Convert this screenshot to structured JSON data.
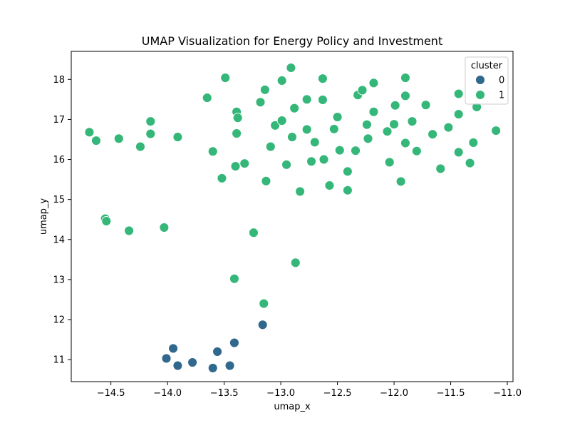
{
  "chart_data": {
    "type": "scatter",
    "title": "UMAP Visualization for Energy Policy and Investment",
    "xlabel": "umap_x",
    "ylabel": "umap_y",
    "xlim": [
      -14.85,
      -10.95
    ],
    "ylim": [
      10.45,
      18.7
    ],
    "xticks": [
      -14.5,
      -14.0,
      -13.5,
      -13.0,
      -12.5,
      -12.0,
      -11.5,
      -11.0
    ],
    "xtick_labels": [
      "−14.5",
      "−14.0",
      "−13.5",
      "−13.0",
      "−12.5",
      "−12.0",
      "−11.5",
      "−11.0"
    ],
    "yticks": [
      11,
      12,
      13,
      14,
      15,
      16,
      17,
      18
    ],
    "ytick_labels": [
      "11",
      "12",
      "13",
      "14",
      "15",
      "16",
      "17",
      "18"
    ],
    "grid": false,
    "legend": {
      "title": "cluster",
      "placement": "top-right"
    },
    "series": [
      {
        "name": "0",
        "color": "#31688e",
        "points": [
          [
            -14.01,
            11.03
          ],
          [
            -13.95,
            11.28
          ],
          [
            -13.91,
            10.85
          ],
          [
            -13.78,
            10.93
          ],
          [
            -13.6,
            10.79
          ],
          [
            -13.56,
            11.2
          ],
          [
            -13.45,
            10.85
          ],
          [
            -13.41,
            11.42
          ],
          [
            -13.16,
            11.87
          ]
        ]
      },
      {
        "name": "1",
        "color": "#35b779",
        "points": [
          [
            -14.69,
            16.68
          ],
          [
            -14.63,
            16.47
          ],
          [
            -14.43,
            16.52
          ],
          [
            -14.24,
            16.32
          ],
          [
            -14.15,
            16.95
          ],
          [
            -14.15,
            16.64
          ],
          [
            -13.91,
            16.56
          ],
          [
            -13.65,
            17.54
          ],
          [
            -13.6,
            16.2
          ],
          [
            -13.52,
            15.53
          ],
          [
            -13.49,
            18.04
          ],
          [
            -13.39,
            17.19
          ],
          [
            -13.38,
            17.04
          ],
          [
            -13.39,
            16.65
          ],
          [
            -13.4,
            15.83
          ],
          [
            -13.32,
            15.9
          ],
          [
            -13.18,
            17.43
          ],
          [
            -13.14,
            17.74
          ],
          [
            -13.13,
            15.46
          ],
          [
            -13.09,
            16.32
          ],
          [
            -13.05,
            16.85
          ],
          [
            -12.99,
            17.97
          ],
          [
            -12.99,
            16.97
          ],
          [
            -12.95,
            15.87
          ],
          [
            -12.91,
            18.29
          ],
          [
            -12.9,
            16.56
          ],
          [
            -12.88,
            17.28
          ],
          [
            -12.83,
            15.2
          ],
          [
            -12.77,
            17.5
          ],
          [
            -12.77,
            16.75
          ],
          [
            -12.73,
            15.95
          ],
          [
            -12.7,
            16.43
          ],
          [
            -12.63,
            18.02
          ],
          [
            -12.63,
            17.49
          ],
          [
            -12.62,
            16.0
          ],
          [
            -12.57,
            15.35
          ],
          [
            -12.53,
            16.76
          ],
          [
            -12.5,
            17.06
          ],
          [
            -12.48,
            16.23
          ],
          [
            -12.41,
            15.7
          ],
          [
            -12.41,
            15.23
          ],
          [
            -12.34,
            16.22
          ],
          [
            -12.32,
            17.61
          ],
          [
            -12.28,
            17.73
          ],
          [
            -12.24,
            16.87
          ],
          [
            -12.23,
            16.52
          ],
          [
            -12.18,
            17.91
          ],
          [
            -12.18,
            17.19
          ],
          [
            -12.06,
            16.7
          ],
          [
            -12.04,
            15.93
          ],
          [
            -12.0,
            16.88
          ],
          [
            -11.99,
            17.35
          ],
          [
            -11.94,
            15.45
          ],
          [
            -11.9,
            18.04
          ],
          [
            -11.9,
            17.59
          ],
          [
            -11.9,
            16.41
          ],
          [
            -11.84,
            16.95
          ],
          [
            -11.8,
            16.21
          ],
          [
            -11.72,
            17.36
          ],
          [
            -11.66,
            16.63
          ],
          [
            -11.59,
            15.77
          ],
          [
            -11.52,
            16.8
          ],
          [
            -11.43,
            17.64
          ],
          [
            -11.43,
            17.13
          ],
          [
            -11.43,
            16.18
          ],
          [
            -11.33,
            15.91
          ],
          [
            -11.3,
            16.42
          ],
          [
            -11.27,
            17.31
          ],
          [
            -11.1,
            16.72
          ],
          [
            -14.55,
            14.52
          ],
          [
            -14.54,
            14.46
          ],
          [
            -14.34,
            14.22
          ],
          [
            -14.03,
            14.3
          ],
          [
            -13.24,
            14.17
          ],
          [
            -12.87,
            13.42
          ],
          [
            -13.41,
            13.02
          ],
          [
            -13.15,
            12.4
          ]
        ]
      }
    ]
  }
}
